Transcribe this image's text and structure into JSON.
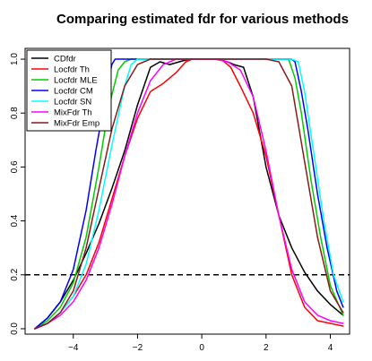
{
  "chart_data": {
    "type": "line",
    "title": "Comparing estimated fdr for various methods",
    "xlabel": "",
    "ylabel": "",
    "xlim": [
      -5.5,
      4.6
    ],
    "ylim": [
      -0.02,
      1.04
    ],
    "xticks": [
      -4,
      -2,
      0,
      2,
      4
    ],
    "xtick_labels": [
      "−4",
      "−2",
      "0",
      "2",
      "4"
    ],
    "yticks": [
      0.0,
      0.2,
      0.4,
      0.6,
      0.8,
      1.0
    ],
    "ytick_labels": [
      "0.0",
      "0.2",
      "0.4",
      "0.6",
      "0.8",
      "1.0"
    ],
    "grid": false,
    "legend_position": "top-left",
    "threshold": {
      "y": 0.2,
      "style": "dashed",
      "color": "#000000"
    },
    "series": [
      {
        "name": "CDfdr",
        "color": "#000000",
        "x": [
          -5.2,
          -4.8,
          -4.4,
          -4.0,
          -3.6,
          -3.2,
          -2.8,
          -2.4,
          -2.0,
          -1.6,
          -1.3,
          -1.0,
          -0.7,
          -0.4,
          -0.3,
          0.0,
          0.3,
          0.5,
          0.8,
          1.0,
          1.3,
          1.6,
          2.0,
          2.4,
          2.8,
          3.2,
          3.6,
          4.0,
          4.4
        ],
        "y": [
          0.0,
          0.04,
          0.1,
          0.18,
          0.28,
          0.39,
          0.52,
          0.66,
          0.83,
          0.97,
          0.99,
          0.98,
          0.99,
          1.0,
          1.0,
          1.0,
          1.0,
          1.0,
          0.99,
          0.98,
          0.97,
          0.86,
          0.6,
          0.42,
          0.3,
          0.21,
          0.14,
          0.09,
          0.05
        ]
      },
      {
        "name": "Locfdr Th",
        "color": "#ff0000",
        "x": [
          -5.2,
          -4.8,
          -4.4,
          -4.0,
          -3.6,
          -3.2,
          -2.8,
          -2.4,
          -2.0,
          -1.6,
          -1.2,
          -0.8,
          -0.5,
          -0.3,
          0.0,
          0.3,
          0.6,
          0.9,
          1.2,
          1.6,
          2.0,
          2.4,
          2.8,
          3.2,
          3.6,
          4.0,
          4.4
        ],
        "y": [
          0.0,
          0.02,
          0.06,
          0.12,
          0.2,
          0.32,
          0.48,
          0.64,
          0.78,
          0.88,
          0.91,
          0.95,
          0.99,
          1.0,
          1.0,
          1.0,
          1.0,
          0.97,
          0.9,
          0.8,
          0.64,
          0.42,
          0.2,
          0.08,
          0.03,
          0.02,
          0.01
        ]
      },
      {
        "name": "Locfdr MLE",
        "color": "#00cd00",
        "x": [
          -5.2,
          -4.8,
          -4.4,
          -4.0,
          -3.6,
          -3.2,
          -2.9,
          -2.6,
          -2.4,
          -2.2,
          -2.0,
          -1.0,
          0.0,
          1.0,
          2.0,
          2.6,
          2.7,
          2.9,
          3.1,
          3.4,
          3.7,
          4.0,
          4.4
        ],
        "y": [
          0.0,
          0.03,
          0.08,
          0.17,
          0.34,
          0.6,
          0.82,
          0.96,
          0.99,
          1.0,
          1.0,
          1.0,
          1.0,
          1.0,
          1.0,
          1.0,
          1.0,
          0.93,
          0.8,
          0.55,
          0.34,
          0.16,
          0.05
        ]
      },
      {
        "name": "Locfdr CM",
        "color": "#0000ff",
        "x": [
          -5.2,
          -4.8,
          -4.4,
          -4.0,
          -3.6,
          -3.3,
          -3.0,
          -2.8,
          -2.7,
          -2.5,
          -1.0,
          0.0,
          1.0,
          2.0,
          2.8,
          2.9,
          3.1,
          3.3,
          3.6,
          3.9,
          4.2,
          4.4
        ],
        "y": [
          0.0,
          0.04,
          0.1,
          0.22,
          0.44,
          0.66,
          0.86,
          0.98,
          1.0,
          1.0,
          1.0,
          1.0,
          1.0,
          1.0,
          1.0,
          0.99,
          0.88,
          0.74,
          0.5,
          0.3,
          0.14,
          0.08
        ]
      },
      {
        "name": "Locfdr SN",
        "color": "#00ffff",
        "x": [
          -5.2,
          -4.8,
          -4.4,
          -4.0,
          -3.6,
          -3.2,
          -2.8,
          -2.4,
          -2.2,
          -2.0,
          -1.0,
          0.0,
          1.0,
          2.0,
          2.8,
          3.0,
          3.2,
          3.5,
          3.8,
          4.1,
          4.4
        ],
        "y": [
          0.0,
          0.02,
          0.06,
          0.12,
          0.24,
          0.44,
          0.68,
          0.9,
          0.98,
          1.0,
          1.0,
          1.0,
          1.0,
          1.0,
          1.0,
          0.99,
          0.88,
          0.64,
          0.4,
          0.2,
          0.1
        ]
      },
      {
        "name": "MixFdr Th",
        "color": "#ff00ff",
        "x": [
          -5.2,
          -4.8,
          -4.4,
          -4.0,
          -3.6,
          -3.2,
          -2.8,
          -2.4,
          -2.0,
          -1.6,
          -1.2,
          -0.8,
          -0.4,
          0.0,
          0.4,
          0.8,
          1.2,
          1.6,
          2.0,
          2.4,
          2.8,
          3.2,
          3.6,
          4.0,
          4.4
        ],
        "y": [
          0.0,
          0.02,
          0.05,
          0.1,
          0.18,
          0.3,
          0.46,
          0.64,
          0.8,
          0.92,
          0.98,
          1.0,
          1.0,
          1.0,
          1.0,
          0.99,
          0.96,
          0.86,
          0.66,
          0.42,
          0.22,
          0.1,
          0.05,
          0.03,
          0.02
        ]
      },
      {
        "name": "MixFdr Emp",
        "color": "#8b1a1a",
        "x": [
          -5.2,
          -4.8,
          -4.4,
          -4.0,
          -3.6,
          -3.2,
          -2.8,
          -2.4,
          -2.0,
          -1.6,
          -1.2,
          -0.8,
          -0.4,
          0.0,
          0.4,
          0.8,
          1.2,
          1.6,
          2.0,
          2.4,
          2.8,
          3.2,
          3.6,
          4.0,
          4.4
        ],
        "y": [
          0.0,
          0.02,
          0.06,
          0.14,
          0.3,
          0.52,
          0.74,
          0.9,
          0.98,
          1.0,
          1.0,
          1.0,
          1.0,
          1.0,
          1.0,
          1.0,
          1.0,
          1.0,
          1.0,
          0.99,
          0.9,
          0.62,
          0.34,
          0.14,
          0.06
        ]
      }
    ]
  }
}
